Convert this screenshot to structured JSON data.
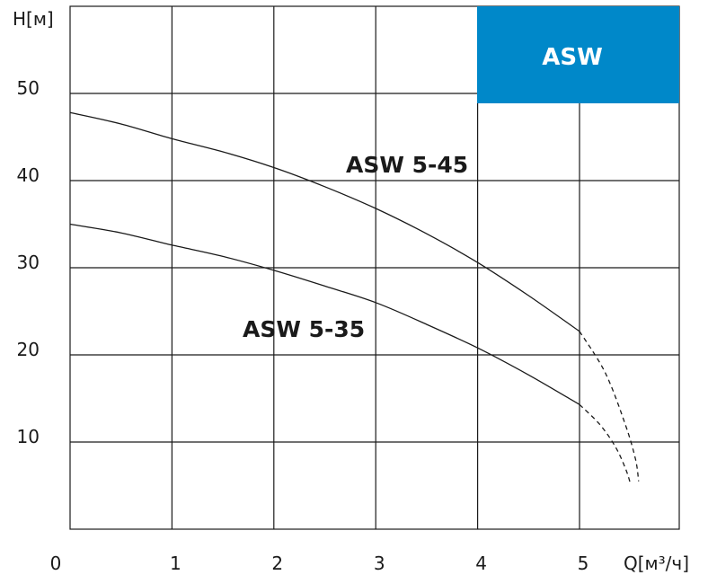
{
  "chart_data": {
    "type": "line",
    "badge": {
      "text": "ASW",
      "color": "#0088c9"
    },
    "xlabel": "Q[м³/ч]",
    "ylabel": "H[м]",
    "xlim": [
      0,
      6.2
    ],
    "ylim": [
      0,
      60
    ],
    "x_ticks": [
      0,
      1,
      2,
      3,
      4,
      5
    ],
    "y_ticks": [
      10,
      20,
      30,
      40,
      50
    ],
    "grid": true,
    "series": [
      {
        "name": "ASW 5-45",
        "x": [
          0,
          0.5,
          1,
          1.5,
          2,
          2.5,
          3,
          3.5,
          4,
          4.5,
          5
        ],
        "y": [
          47.8,
          46.5,
          44.8,
          43.3,
          41.5,
          39.3,
          36.8,
          33.9,
          30.6,
          26.8,
          22.7
        ],
        "dashed_tail": {
          "x": [
            5,
            5.25,
            5.45,
            5.55,
            5.58
          ],
          "y": [
            22.7,
            18,
            12,
            8,
            5.5
          ]
        }
      },
      {
        "name": "ASW 5-35",
        "x": [
          0,
          0.5,
          1,
          1.5,
          2,
          2.5,
          3,
          3.5,
          4,
          4.5,
          5
        ],
        "y": [
          35,
          34,
          32.6,
          31.3,
          29.7,
          27.9,
          26,
          23.5,
          20.8,
          17.7,
          14.3
        ],
        "dashed_tail": {
          "x": [
            5,
            5.2,
            5.35,
            5.45,
            5.5
          ],
          "y": [
            14.3,
            12,
            9.5,
            7,
            5.2
          ]
        }
      }
    ]
  }
}
